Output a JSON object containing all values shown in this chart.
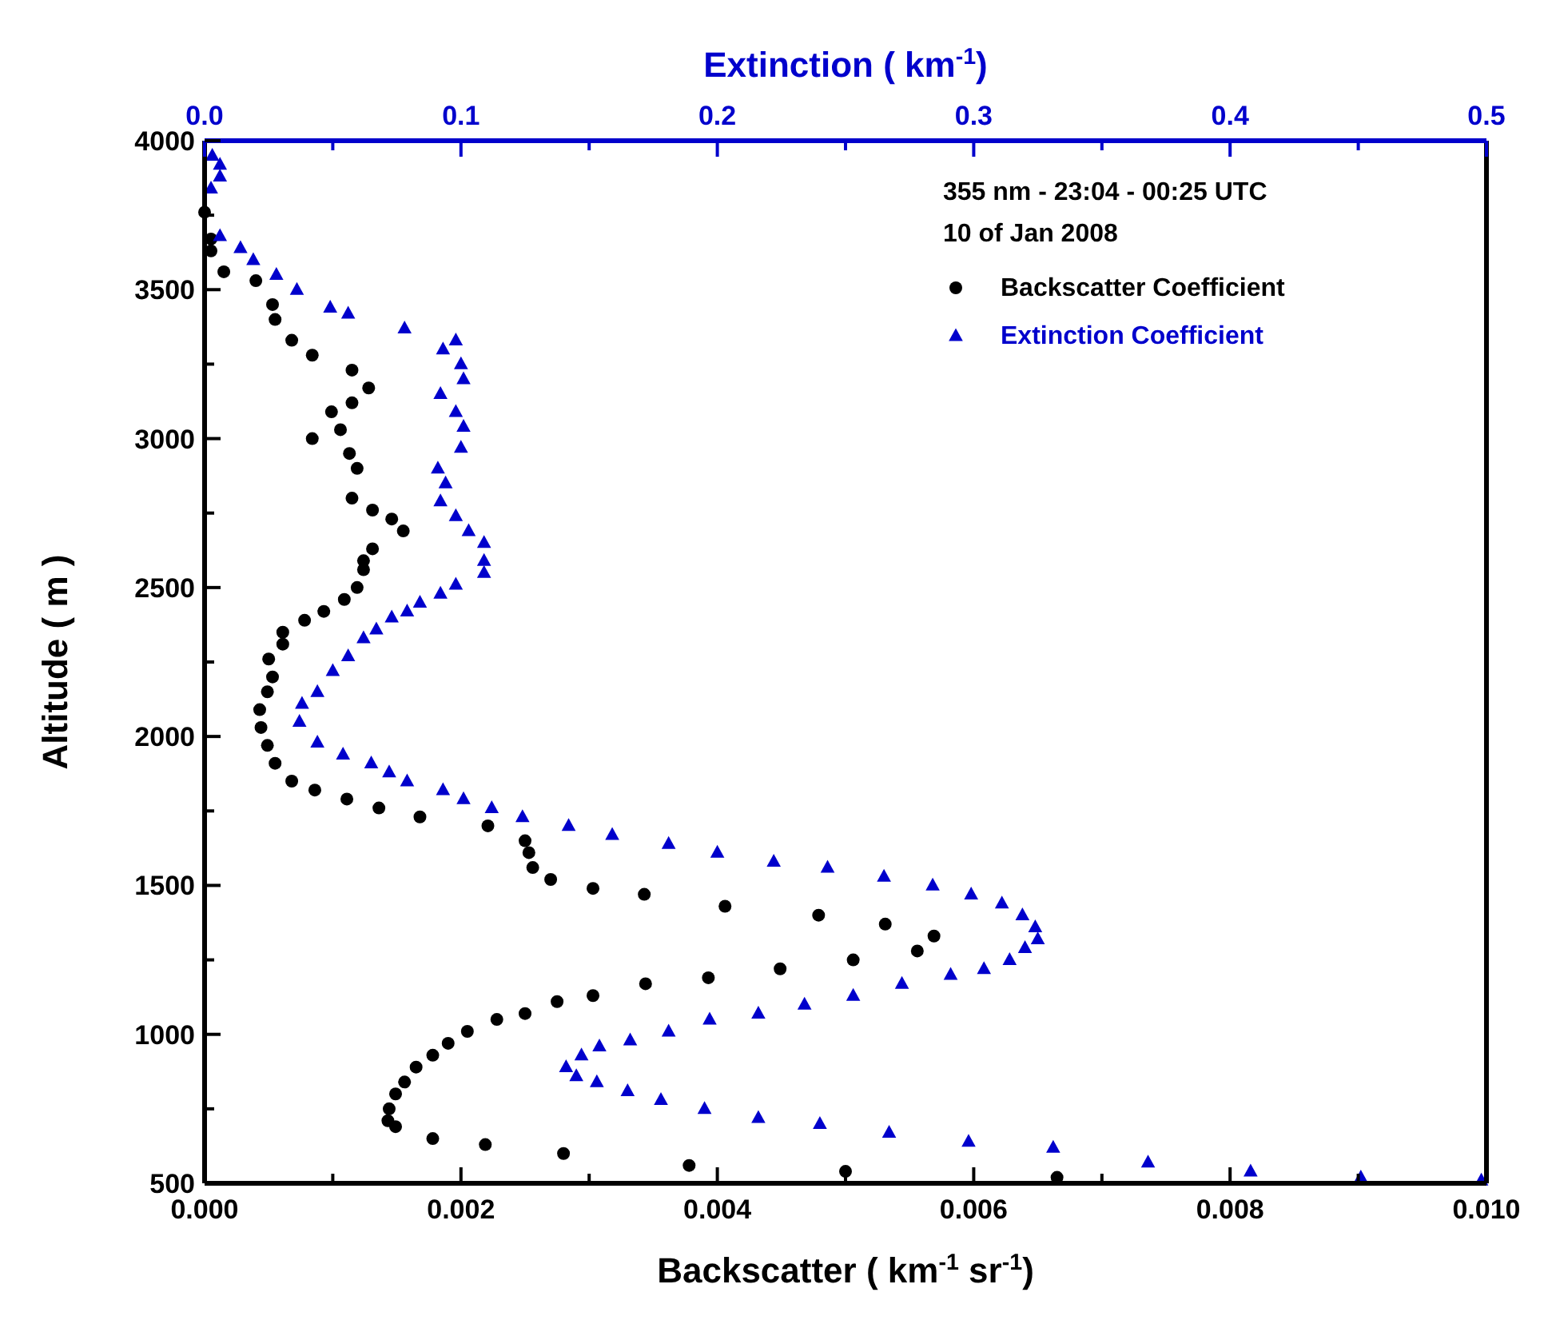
{
  "chart_data": {
    "type": "scatter",
    "xlabel": "Backscatter ( km$^{-1}$ sr$^{-1}$)",
    "x2label": "Extinction ( km$^{-1}$)",
    "ylabel": "Altitude ( m )",
    "annotations": [
      "355 nm - 23:04 - 00:25 UTC",
      "10 of Jan 2008"
    ],
    "xlim": [
      0,
      0.01
    ],
    "xticks": [
      {
        "value": 0,
        "label": "0.000"
      },
      {
        "value": 0.001,
        "label": null
      },
      {
        "value": 0.002,
        "label": "0.002"
      },
      {
        "value": 0.003,
        "label": null
      },
      {
        "value": 0.004,
        "label": "0.004"
      },
      {
        "value": 0.005,
        "label": null
      },
      {
        "value": 0.006,
        "label": "0.006"
      },
      {
        "value": 0.007,
        "label": null
      },
      {
        "value": 0.008,
        "label": "0.008"
      },
      {
        "value": 0.009,
        "label": null
      },
      {
        "value": 0.01,
        "label": "0.010"
      }
    ],
    "x2lim": [
      0,
      0.5
    ],
    "x2ticks": [
      {
        "value": 0,
        "label": "0.0"
      },
      {
        "value": 0.05,
        "label": null
      },
      0.1,
      {
        "value": 0.15,
        "label": null
      },
      0.2,
      {
        "value": 0.25,
        "label": null
      },
      0.3,
      {
        "value": 0.35,
        "label": null
      },
      0.4,
      {
        "value": 0.45,
        "label": null
      },
      0.5
    ],
    "ylim": [
      500,
      4000
    ],
    "yticks": [
      500,
      {
        "value": 750,
        "label": null
      },
      1000,
      {
        "value": 1250,
        "label": null
      },
      1500,
      {
        "value": 1750,
        "label": null
      },
      2000,
      {
        "value": 2250,
        "label": null
      },
      2500,
      {
        "value": 2750,
        "label": null
      },
      3000,
      {
        "value": 3250,
        "label": null
      },
      3500,
      {
        "value": 3750,
        "label": null
      },
      4000
    ],
    "legend": "top right",
    "grid": false,
    "series": [
      {
        "name": "Backscatter Coefficient",
        "color": "#000000",
        "marker": "circle",
        "x": [
          0,
          5e-05,
          5e-05,
          0.00015,
          0.0004,
          0.00053,
          0.00055,
          0.00068,
          0.00084,
          0.00115,
          0.00128,
          0.00115,
          0.00099,
          0.00106,
          0.00084,
          0.00113,
          0.00119,
          0.00115,
          0.00131,
          0.00146,
          0.00155,
          0.00131,
          0.00124,
          0.00124,
          0.00119,
          0.00109,
          0.00093,
          0.00078,
          0.00061,
          0.00061,
          0.0005,
          0.00053,
          0.00049,
          0.00043,
          0.00044,
          0.00049,
          0.00055,
          0.00068,
          0.00086,
          0.00111,
          0.00136,
          0.00168,
          0.00221,
          0.0025,
          0.00253,
          0.00256,
          0.0027,
          0.00303,
          0.00343,
          0.00406,
          0.00479,
          0.00531,
          0.00569,
          0.00556,
          0.00506,
          0.00449,
          0.00393,
          0.00344,
          0.00303,
          0.00275,
          0.0025,
          0.00228,
          0.00205,
          0.0019,
          0.00178,
          0.00165,
          0.00156,
          0.00149,
          0.00144,
          0.00143,
          0.00149,
          0.00178,
          0.00219,
          0.0028,
          0.00378,
          0.005,
          0.00665
        ],
        "values": [
          3760,
          3670,
          3630,
          3560,
          3530,
          3450,
          3400,
          3330,
          3280,
          3230,
          3170,
          3120,
          3090,
          3030,
          3000,
          2950,
          2900,
          2800,
          2760,
          2730,
          2690,
          2630,
          2590,
          2560,
          2500,
          2460,
          2420,
          2390,
          2350,
          2310,
          2260,
          2200,
          2150,
          2090,
          2030,
          1970,
          1910,
          1850,
          1820,
          1790,
          1760,
          1730,
          1700,
          1650,
          1610,
          1560,
          1520,
          1490,
          1470,
          1430,
          1400,
          1370,
          1330,
          1280,
          1250,
          1220,
          1190,
          1170,
          1130,
          1110,
          1070,
          1050,
          1010,
          970,
          930,
          890,
          840,
          800,
          750,
          710,
          690,
          650,
          630,
          600,
          560,
          540,
          520
        ]
      },
      {
        "name": "Extinction Coefficient",
        "color": "#0000cc",
        "marker": "triangle",
        "axis": "x2",
        "x": [
          0.003,
          0.006,
          0.006,
          0.0025,
          0.006,
          0.014,
          0.019,
          0.028,
          0.036,
          0.049,
          0.056,
          0.078,
          0.093,
          0.098,
          0.1,
          0.101,
          0.092,
          0.098,
          0.101,
          0.1,
          0.091,
          0.094,
          0.092,
          0.098,
          0.103,
          0.109,
          0.109,
          0.109,
          0.098,
          0.092,
          0.084,
          0.079,
          0.073,
          0.067,
          0.062,
          0.056,
          0.05,
          0.044,
          0.038,
          0.037,
          0.044,
          0.054,
          0.065,
          0.072,
          0.079,
          0.093,
          0.101,
          0.112,
          0.124,
          0.142,
          0.159,
          0.181,
          0.2,
          0.222,
          0.243,
          0.265,
          0.284,
          0.299,
          0.311,
          0.319,
          0.324,
          0.325,
          0.32,
          0.314,
          0.304,
          0.291,
          0.272,
          0.253,
          0.234,
          0.216,
          0.197,
          0.181,
          0.166,
          0.154,
          0.147,
          0.141,
          0.145,
          0.153,
          0.165,
          0.178,
          0.195,
          0.216,
          0.24,
          0.267,
          0.298,
          0.331,
          0.368,
          0.408,
          0.451,
          0.498
        ],
        "values": [
          3950,
          3920,
          3880,
          3840,
          3680,
          3640,
          3600,
          3550,
          3500,
          3440,
          3420,
          3370,
          3300,
          3330,
          3250,
          3200,
          3150,
          3090,
          3040,
          2970,
          2900,
          2850,
          2790,
          2740,
          2690,
          2650,
          2590,
          2550,
          2510,
          2480,
          2450,
          2420,
          2400,
          2360,
          2330,
          2270,
          2220,
          2150,
          2110,
          2050,
          1980,
          1940,
          1910,
          1880,
          1850,
          1820,
          1790,
          1760,
          1730,
          1700,
          1670,
          1640,
          1610,
          1580,
          1560,
          1530,
          1500,
          1470,
          1440,
          1400,
          1360,
          1320,
          1290,
          1250,
          1220,
          1200,
          1170,
          1130,
          1100,
          1070,
          1050,
          1010,
          980,
          960,
          930,
          890,
          860,
          840,
          810,
          780,
          750,
          720,
          700,
          670,
          640,
          620,
          570,
          540,
          520,
          510
        ]
      }
    ]
  }
}
